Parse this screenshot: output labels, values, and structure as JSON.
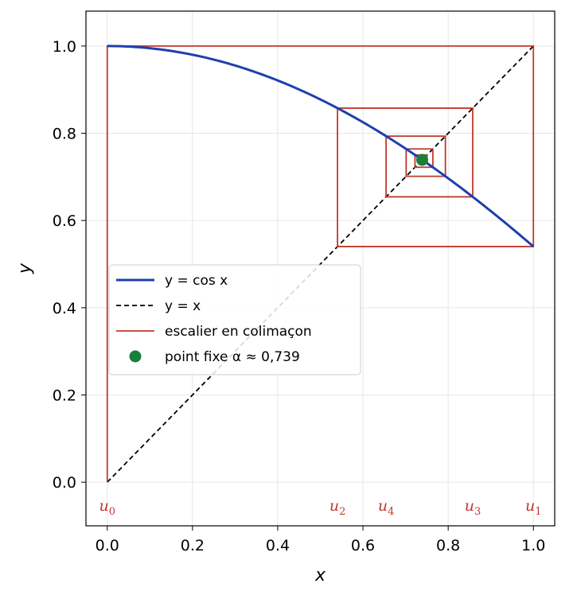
{
  "chart_data": {
    "type": "line",
    "title": "",
    "xlabel": "x",
    "ylabel": "y",
    "xlim": [
      -0.05,
      1.05
    ],
    "ylim": [
      -0.1,
      1.08
    ],
    "x_ticks": [
      "0.0",
      "0.2",
      "0.4",
      "0.6",
      "0.8",
      "1.0"
    ],
    "y_ticks": [
      "0.0",
      "0.2",
      "0.4",
      "0.6",
      "0.8",
      "1.0"
    ],
    "grid": true,
    "legend_position": "center-left",
    "colors": {
      "cos": "#1f3fae",
      "identity": "#000000",
      "cobweb": "#c0392b",
      "fixed_point": "#1a7f3c",
      "grid": "#e6e6e6"
    },
    "series": [
      {
        "name": "y = cos x",
        "kind": "curve",
        "domain": [
          0,
          1
        ]
      },
      {
        "name": "y = x",
        "kind": "dashed-line",
        "x": [
          0,
          1
        ],
        "y": [
          0,
          1
        ]
      },
      {
        "name": "escalier en colimaçon",
        "kind": "cobweb",
        "u": [
          0,
          1,
          0.5403,
          0.8576,
          0.6543,
          0.7935,
          0.7014,
          0.764,
          0.7221,
          0.7504,
          0.7314
        ]
      },
      {
        "name": "point fixe α ≈ 0,739",
        "kind": "point",
        "x": 0.739,
        "y": 0.739
      }
    ],
    "annotations": [
      {
        "base": "u",
        "sub": "0",
        "x": 0.0
      },
      {
        "base": "u",
        "sub": "1",
        "x": 1.0
      },
      {
        "base": "u",
        "sub": "2",
        "x": 0.5403
      },
      {
        "base": "u",
        "sub": "3",
        "x": 0.8576
      },
      {
        "base": "u",
        "sub": "4",
        "x": 0.6543
      }
    ]
  }
}
